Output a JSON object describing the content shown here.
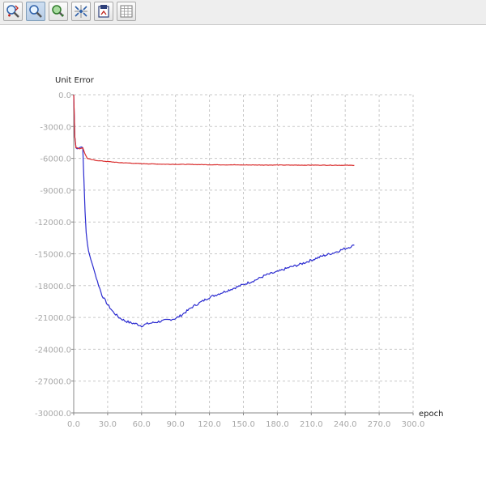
{
  "toolbar": {
    "buttons": [
      {
        "name": "zoom-in-icon",
        "active": false
      },
      {
        "name": "zoom-icon",
        "active": true
      },
      {
        "name": "pan-icon",
        "active": false
      },
      {
        "name": "fit-icon",
        "active": false
      },
      {
        "name": "export-icon",
        "active": false
      },
      {
        "name": "grid-icon",
        "active": false
      }
    ]
  },
  "chart_data": {
    "type": "line",
    "title": "",
    "xlabel": "epoch",
    "ylabel": "Unit Error",
    "xlim": [
      0,
      300
    ],
    "ylim": [
      -30000,
      0
    ],
    "x_ticks": [
      "0.0",
      "30.0",
      "60.0",
      "90.0",
      "120.0",
      "150.0",
      "180.0",
      "210.0",
      "240.0",
      "270.0",
      "300.0"
    ],
    "y_ticks": [
      "0.0",
      "-3000.0",
      "-6000.0",
      "-9000.0",
      "-12000.0",
      "-15000.0",
      "-18000.0",
      "-21000.0",
      "-24000.0",
      "-27000.0",
      "-30000.0"
    ],
    "grid": true,
    "colors": {
      "series_a": "#2b2bd0",
      "series_b": "#d92c2c",
      "grid": "#c8c8c8",
      "axis": "#888888"
    },
    "series": [
      {
        "color": "#2b2bd0",
        "x": [
          0,
          1,
          2,
          3,
          5,
          7,
          8,
          9,
          10,
          11,
          12,
          13,
          15,
          18,
          20,
          25,
          30,
          35,
          40,
          45,
          50,
          55,
          60,
          62,
          65,
          70,
          75,
          80,
          85,
          90,
          95,
          100,
          105,
          110,
          115,
          120,
          130,
          140,
          150,
          160,
          170,
          180,
          190,
          200,
          210,
          220,
          230,
          240,
          248
        ],
        "y": [
          0,
          -4000,
          -5000,
          -5100,
          -5000,
          -4900,
          -5000,
          -8000,
          -11000,
          -13000,
          -14000,
          -14700,
          -15500,
          -16500,
          -17300,
          -18900,
          -19800,
          -20500,
          -21000,
          -21300,
          -21500,
          -21600,
          -21800,
          -21700,
          -21600,
          -21500,
          -21400,
          -21300,
          -21200,
          -21100,
          -20800,
          -20400,
          -20000,
          -19700,
          -19400,
          -19100,
          -18700,
          -18300,
          -17900,
          -17500,
          -17000,
          -16700,
          -16300,
          -16000,
          -15600,
          -15200,
          -14900,
          -14500,
          -14200
        ]
      },
      {
        "color": "#d92c2c",
        "x": [
          0,
          1,
          2,
          3,
          5,
          8,
          10,
          12,
          15,
          20,
          30,
          40,
          50,
          60,
          80,
          100,
          120,
          150,
          180,
          200,
          220,
          240,
          248
        ],
        "y": [
          0,
          -4000,
          -5000,
          -5000,
          -5100,
          -5000,
          -5600,
          -6000,
          -6100,
          -6200,
          -6300,
          -6400,
          -6450,
          -6500,
          -6550,
          -6570,
          -6600,
          -6620,
          -6630,
          -6640,
          -6640,
          -6650,
          -6660
        ]
      }
    ]
  }
}
